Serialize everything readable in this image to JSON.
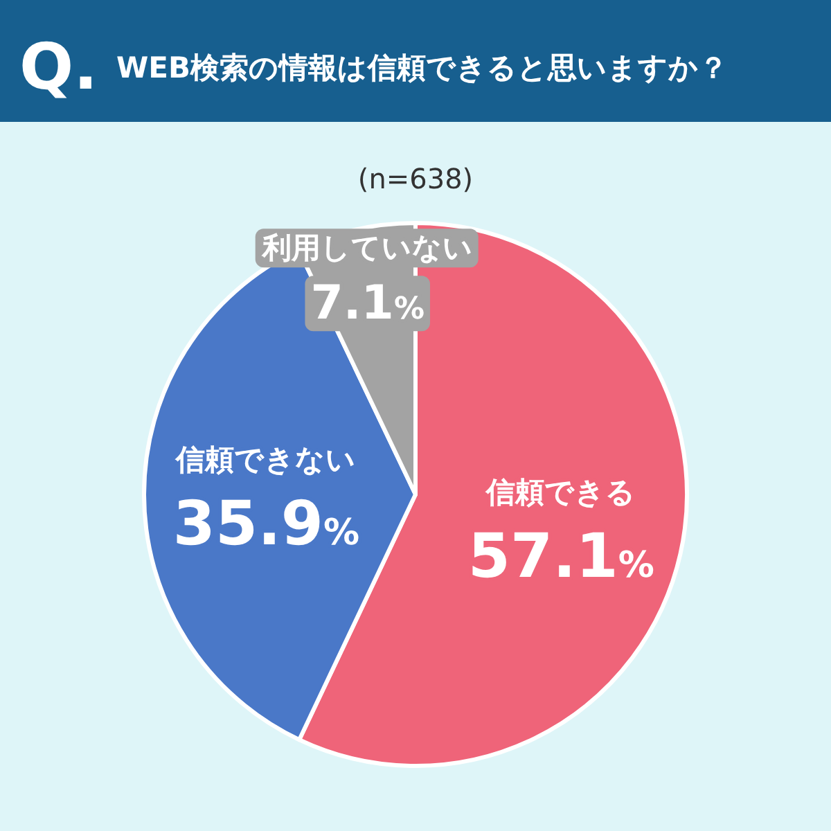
{
  "chart_data": {
    "type": "pie",
    "title": "WEB検索の情報は信頼できると思いますか？",
    "annotations": [
      "Q.",
      "(n=638)"
    ],
    "categories": [
      "信頼できる",
      "信頼できない",
      "利用していない"
    ],
    "values": [
      57.1,
      35.9,
      7.1
    ],
    "colors": [
      "#ef6479",
      "#4a78c8",
      "#a3a3a3"
    ],
    "value_labels": [
      "57.1%",
      "35.9%",
      "7.1%"
    ],
    "legend": false
  }
}
